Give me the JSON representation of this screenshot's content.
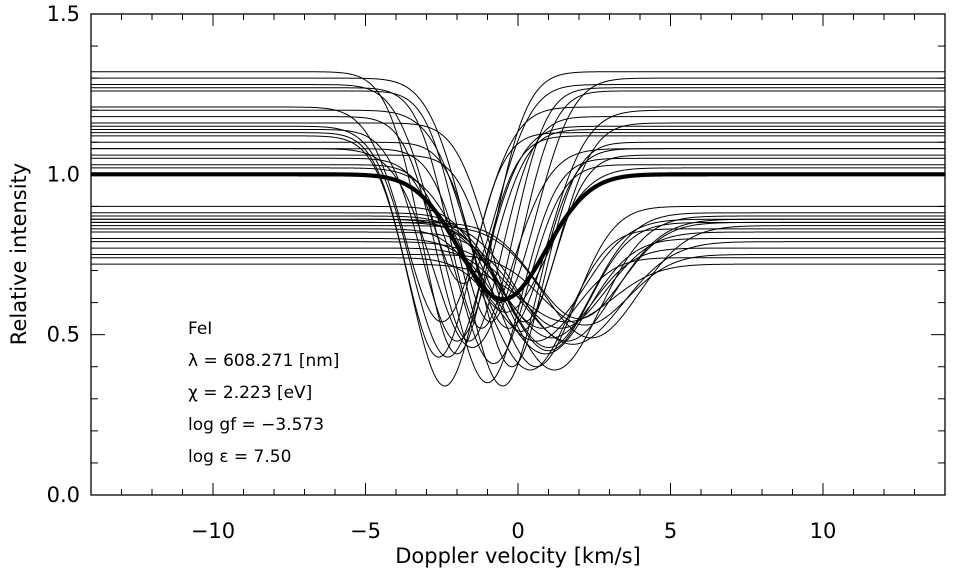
{
  "chart_data": {
    "type": "line",
    "xlabel": "Doppler velocity [km/s]",
    "ylabel": "Relative intensity",
    "xlim": [
      -14,
      14
    ],
    "ylim": [
      0,
      1.5
    ],
    "x_ticks": [
      {
        "value": -10,
        "label": "−10"
      },
      {
        "value": -5,
        "label": "−5"
      },
      {
        "value": 0,
        "label": "0"
      },
      {
        "value": 5,
        "label": "5"
      },
      {
        "value": 10,
        "label": "10"
      }
    ],
    "y_ticks": [
      {
        "value": 0.0,
        "label": "0.0"
      },
      {
        "value": 0.5,
        "label": "0.5"
      },
      {
        "value": 1.0,
        "label": "1.0"
      },
      {
        "value": 1.5,
        "label": "1.5"
      }
    ],
    "x_minor_step": 1,
    "y_minor_step": 0.1,
    "grid": false,
    "line_color": "#000000",
    "annotations": [
      "FeI",
      "λ = 608.271 [nm]",
      "χ =  2.223 [eV]",
      "log gf = −3.573",
      "log ε =  7.50"
    ],
    "profile_model": "continuum − depth·exp(−((v−center)/width)²)",
    "mean_profile": {
      "continuum": 1.0,
      "depth": 0.39,
      "center": -0.5,
      "width": 2.0
    },
    "series": [
      {
        "continuum": 1.32,
        "depth": 0.88,
        "center": -2.0,
        "width": 1.6
      },
      {
        "continuum": 1.3,
        "depth": 0.7,
        "center": -0.6,
        "width": 1.7
      },
      {
        "continuum": 1.28,
        "depth": 0.62,
        "center": -1.8,
        "width": 1.6
      },
      {
        "continuum": 1.27,
        "depth": 0.75,
        "center": -1.2,
        "width": 1.5
      },
      {
        "continuum": 1.26,
        "depth": 0.72,
        "center": -0.9,
        "width": 1.5
      },
      {
        "continuum": 1.21,
        "depth": 0.67,
        "center": -2.5,
        "width": 1.7
      },
      {
        "continuum": 1.2,
        "depth": 0.68,
        "center": -0.3,
        "width": 1.8
      },
      {
        "continuum": 1.18,
        "depth": 0.7,
        "center": -1.6,
        "width": 1.5
      },
      {
        "continuum": 1.16,
        "depth": 0.62,
        "center": 0.2,
        "width": 1.6
      },
      {
        "continuum": 1.15,
        "depth": 0.72,
        "center": -2.3,
        "width": 1.7
      },
      {
        "continuum": 1.14,
        "depth": 0.66,
        "center": -2.0,
        "width": 1.6
      },
      {
        "continuum": 1.13,
        "depth": 0.7,
        "center": -2.6,
        "width": 1.5
      },
      {
        "continuum": 1.12,
        "depth": 0.78,
        "center": -2.4,
        "width": 1.6
      },
      {
        "continuum": 1.1,
        "depth": 0.7,
        "center": -0.2,
        "width": 1.5
      },
      {
        "continuum": 1.08,
        "depth": 0.62,
        "center": -1.5,
        "width": 1.8
      },
      {
        "continuum": 1.08,
        "depth": 0.74,
        "center": -0.5,
        "width": 1.6
      },
      {
        "continuum": 1.06,
        "depth": 0.55,
        "center": 0.1,
        "width": 1.5
      },
      {
        "continuum": 1.05,
        "depth": 0.7,
        "center": -1.0,
        "width": 1.6
      },
      {
        "continuum": 1.03,
        "depth": 0.62,
        "center": -0.8,
        "width": 1.6
      },
      {
        "continuum": 1.02,
        "depth": 0.45,
        "center": -0.4,
        "width": 1.9
      },
      {
        "continuum": 0.9,
        "depth": 0.5,
        "center": 0.6,
        "width": 1.8
      },
      {
        "continuum": 0.88,
        "depth": 0.42,
        "center": 1.0,
        "width": 2.0
      },
      {
        "continuum": 0.87,
        "depth": 0.48,
        "center": 1.2,
        "width": 2.1
      },
      {
        "continuum": 0.86,
        "depth": 0.34,
        "center": 0.8,
        "width": 2.0
      },
      {
        "continuum": 0.86,
        "depth": 0.38,
        "center": 1.6,
        "width": 2.2
      },
      {
        "continuum": 0.85,
        "depth": 0.3,
        "center": 2.0,
        "width": 2.0
      },
      {
        "continuum": 0.85,
        "depth": 0.4,
        "center": 1.0,
        "width": 1.9
      },
      {
        "continuum": 0.84,
        "depth": 0.35,
        "center": 2.4,
        "width": 2.2
      },
      {
        "continuum": 0.83,
        "depth": 0.44,
        "center": 0.4,
        "width": 1.8
      },
      {
        "continuum": 0.82,
        "depth": 0.3,
        "center": 1.4,
        "width": 2.1
      },
      {
        "continuum": 0.8,
        "depth": 0.36,
        "center": 0.9,
        "width": 2.0
      },
      {
        "continuum": 0.79,
        "depth": 0.32,
        "center": 1.8,
        "width": 2.3
      },
      {
        "continuum": 0.77,
        "depth": 0.28,
        "center": 1.1,
        "width": 1.9
      },
      {
        "continuum": 0.75,
        "depth": 0.22,
        "center": 2.2,
        "width": 2.0
      },
      {
        "continuum": 0.74,
        "depth": 0.26,
        "center": 0.6,
        "width": 1.8
      },
      {
        "continuum": 0.72,
        "depth": 0.18,
        "center": 1.6,
        "width": 2.1
      }
    ]
  }
}
